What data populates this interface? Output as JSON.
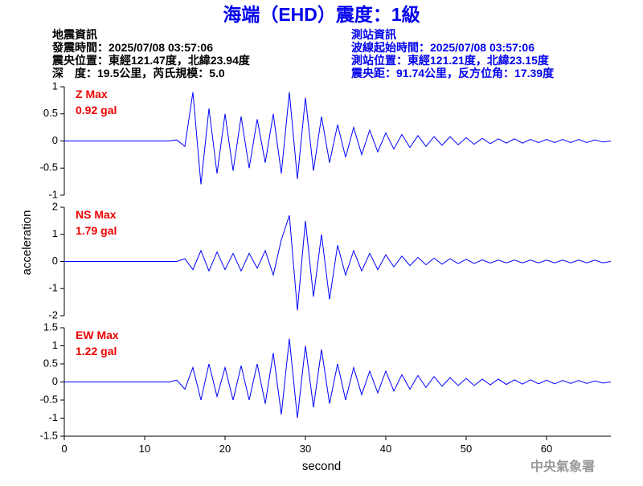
{
  "title": "海端（EHD）震度：1級",
  "info_left": [
    "地震資訊",
    "發震時間：2025/07/08 03:57:06",
    "震央位置：東經121.47度，北緯23.94度",
    "深　度：19.5公里，芮氏規模：5.0"
  ],
  "info_right": [
    "測站資訊",
    "波線起始時間：2025/07/08 03:57:06",
    "測站位置：東經121.21度，北緯23.15度",
    "震央距：91.74公里，反方位角：17.39度"
  ],
  "y_label": "acceleration",
  "footer": "中央氣象署",
  "chart_data": [
    {
      "type": "line",
      "annotation": [
        "Z Max",
        "0.92 gal"
      ],
      "xlim": [
        0,
        68
      ],
      "ylim": [
        -1,
        1
      ],
      "yticks": [
        1,
        0.5,
        0,
        -0.5,
        -1
      ],
      "x": [
        0,
        1,
        2,
        3,
        4,
        5,
        6,
        7,
        8,
        9,
        10,
        11,
        12,
        13,
        14,
        15,
        16,
        17,
        18,
        19,
        20,
        21,
        22,
        23,
        24,
        25,
        26,
        27,
        28,
        29,
        30,
        31,
        32,
        33,
        34,
        35,
        36,
        37,
        38,
        39,
        40,
        41,
        42,
        43,
        44,
        45,
        46,
        47,
        48,
        49,
        50,
        51,
        52,
        53,
        54,
        55,
        56,
        57,
        58,
        59,
        60,
        61,
        62,
        63,
        64,
        65,
        66,
        67,
        68
      ],
      "series": [
        {
          "color": "#0000ff",
          "values": [
            0,
            0,
            0,
            0,
            0,
            0,
            0,
            0,
            0,
            0,
            0,
            0,
            0,
            0,
            0.02,
            -0.1,
            0.9,
            -0.8,
            0.6,
            -0.6,
            0.5,
            -0.55,
            0.45,
            -0.5,
            0.4,
            -0.4,
            0.5,
            -0.6,
            0.9,
            -0.7,
            0.8,
            -0.55,
            0.45,
            -0.4,
            0.3,
            -0.3,
            0.25,
            -0.25,
            0.2,
            -0.2,
            0.15,
            -0.15,
            0.12,
            -0.12,
            0.1,
            -0.1,
            0.08,
            -0.08,
            0.08,
            -0.07,
            0.06,
            -0.06,
            0.05,
            -0.05,
            0.04,
            -0.04,
            0.04,
            -0.04,
            0.03,
            -0.03,
            0.03,
            -0.03,
            0.03,
            -0.03,
            0.03,
            -0.03,
            0.02,
            -0.02,
            0
          ]
        }
      ]
    },
    {
      "type": "line",
      "annotation": [
        "NS Max",
        "1.79 gal"
      ],
      "xlim": [
        0,
        68
      ],
      "ylim": [
        -2,
        2
      ],
      "yticks": [
        2,
        1,
        0,
        -1,
        -2
      ],
      "x": [
        0,
        1,
        2,
        3,
        4,
        5,
        6,
        7,
        8,
        9,
        10,
        11,
        12,
        13,
        14,
        15,
        16,
        17,
        18,
        19,
        20,
        21,
        22,
        23,
        24,
        25,
        26,
        27,
        28,
        29,
        30,
        31,
        32,
        33,
        34,
        35,
        36,
        37,
        38,
        39,
        40,
        41,
        42,
        43,
        44,
        45,
        46,
        47,
        48,
        49,
        50,
        51,
        52,
        53,
        54,
        55,
        56,
        57,
        58,
        59,
        60,
        61,
        62,
        63,
        64,
        65,
        66,
        67,
        68
      ],
      "series": [
        {
          "color": "#0000ff",
          "values": [
            0,
            0,
            0,
            0,
            0,
            0,
            0,
            0,
            0,
            0,
            0,
            0,
            0,
            0,
            0,
            0.1,
            -0.3,
            0.4,
            -0.35,
            0.35,
            -0.3,
            0.3,
            -0.35,
            0.3,
            -0.25,
            0.4,
            -0.5,
            0.8,
            1.7,
            -1.8,
            1.5,
            -1.3,
            1.0,
            -1.4,
            0.6,
            -0.5,
            0.4,
            -0.35,
            0.3,
            -0.3,
            0.25,
            -0.2,
            0.2,
            -0.15,
            0.15,
            -0.12,
            0.12,
            -0.1,
            0.1,
            -0.08,
            0.08,
            -0.07,
            0.06,
            -0.06,
            0.05,
            -0.05,
            0.05,
            -0.05,
            0.05,
            -0.05,
            0.05,
            -0.05,
            0.05,
            -0.05,
            0.05,
            -0.05,
            0.05,
            -0.05,
            0
          ]
        }
      ]
    },
    {
      "type": "line",
      "annotation": [
        "EW Max",
        "1.22 gal"
      ],
      "x_label": "second",
      "xlim": [
        0,
        68
      ],
      "xticks": [
        0,
        10,
        20,
        30,
        40,
        50,
        60
      ],
      "ylim": [
        -1.5,
        1.5
      ],
      "yticks": [
        1.5,
        1,
        0.5,
        0,
        -0.5,
        -1,
        -1.5
      ],
      "x": [
        0,
        1,
        2,
        3,
        4,
        5,
        6,
        7,
        8,
        9,
        10,
        11,
        12,
        13,
        14,
        15,
        16,
        17,
        18,
        19,
        20,
        21,
        22,
        23,
        24,
        25,
        26,
        27,
        28,
        29,
        30,
        31,
        32,
        33,
        34,
        35,
        36,
        37,
        38,
        39,
        40,
        41,
        42,
        43,
        44,
        45,
        46,
        47,
        48,
        49,
        50,
        51,
        52,
        53,
        54,
        55,
        56,
        57,
        58,
        59,
        60,
        61,
        62,
        63,
        64,
        65,
        66,
        67,
        68
      ],
      "series": [
        {
          "color": "#0000ff",
          "values": [
            0,
            0,
            0,
            0,
            0,
            0,
            0,
            0,
            0,
            0,
            0,
            0,
            0,
            0,
            0.05,
            -0.2,
            0.4,
            -0.5,
            0.5,
            -0.4,
            0.4,
            -0.5,
            0.45,
            -0.5,
            0.5,
            -0.6,
            0.8,
            -0.9,
            1.2,
            -1.0,
            1.0,
            -0.7,
            0.9,
            -0.6,
            0.5,
            -0.5,
            0.4,
            -0.35,
            0.3,
            -0.3,
            0.3,
            -0.25,
            0.2,
            -0.2,
            0.18,
            -0.15,
            0.15,
            -0.12,
            0.12,
            -0.1,
            0.1,
            -0.1,
            0.08,
            -0.08,
            0.08,
            -0.07,
            0.06,
            -0.06,
            0.06,
            -0.05,
            0.05,
            -0.05,
            0.04,
            -0.04,
            0.04,
            -0.04,
            0.03,
            -0.03,
            0
          ]
        }
      ]
    }
  ]
}
